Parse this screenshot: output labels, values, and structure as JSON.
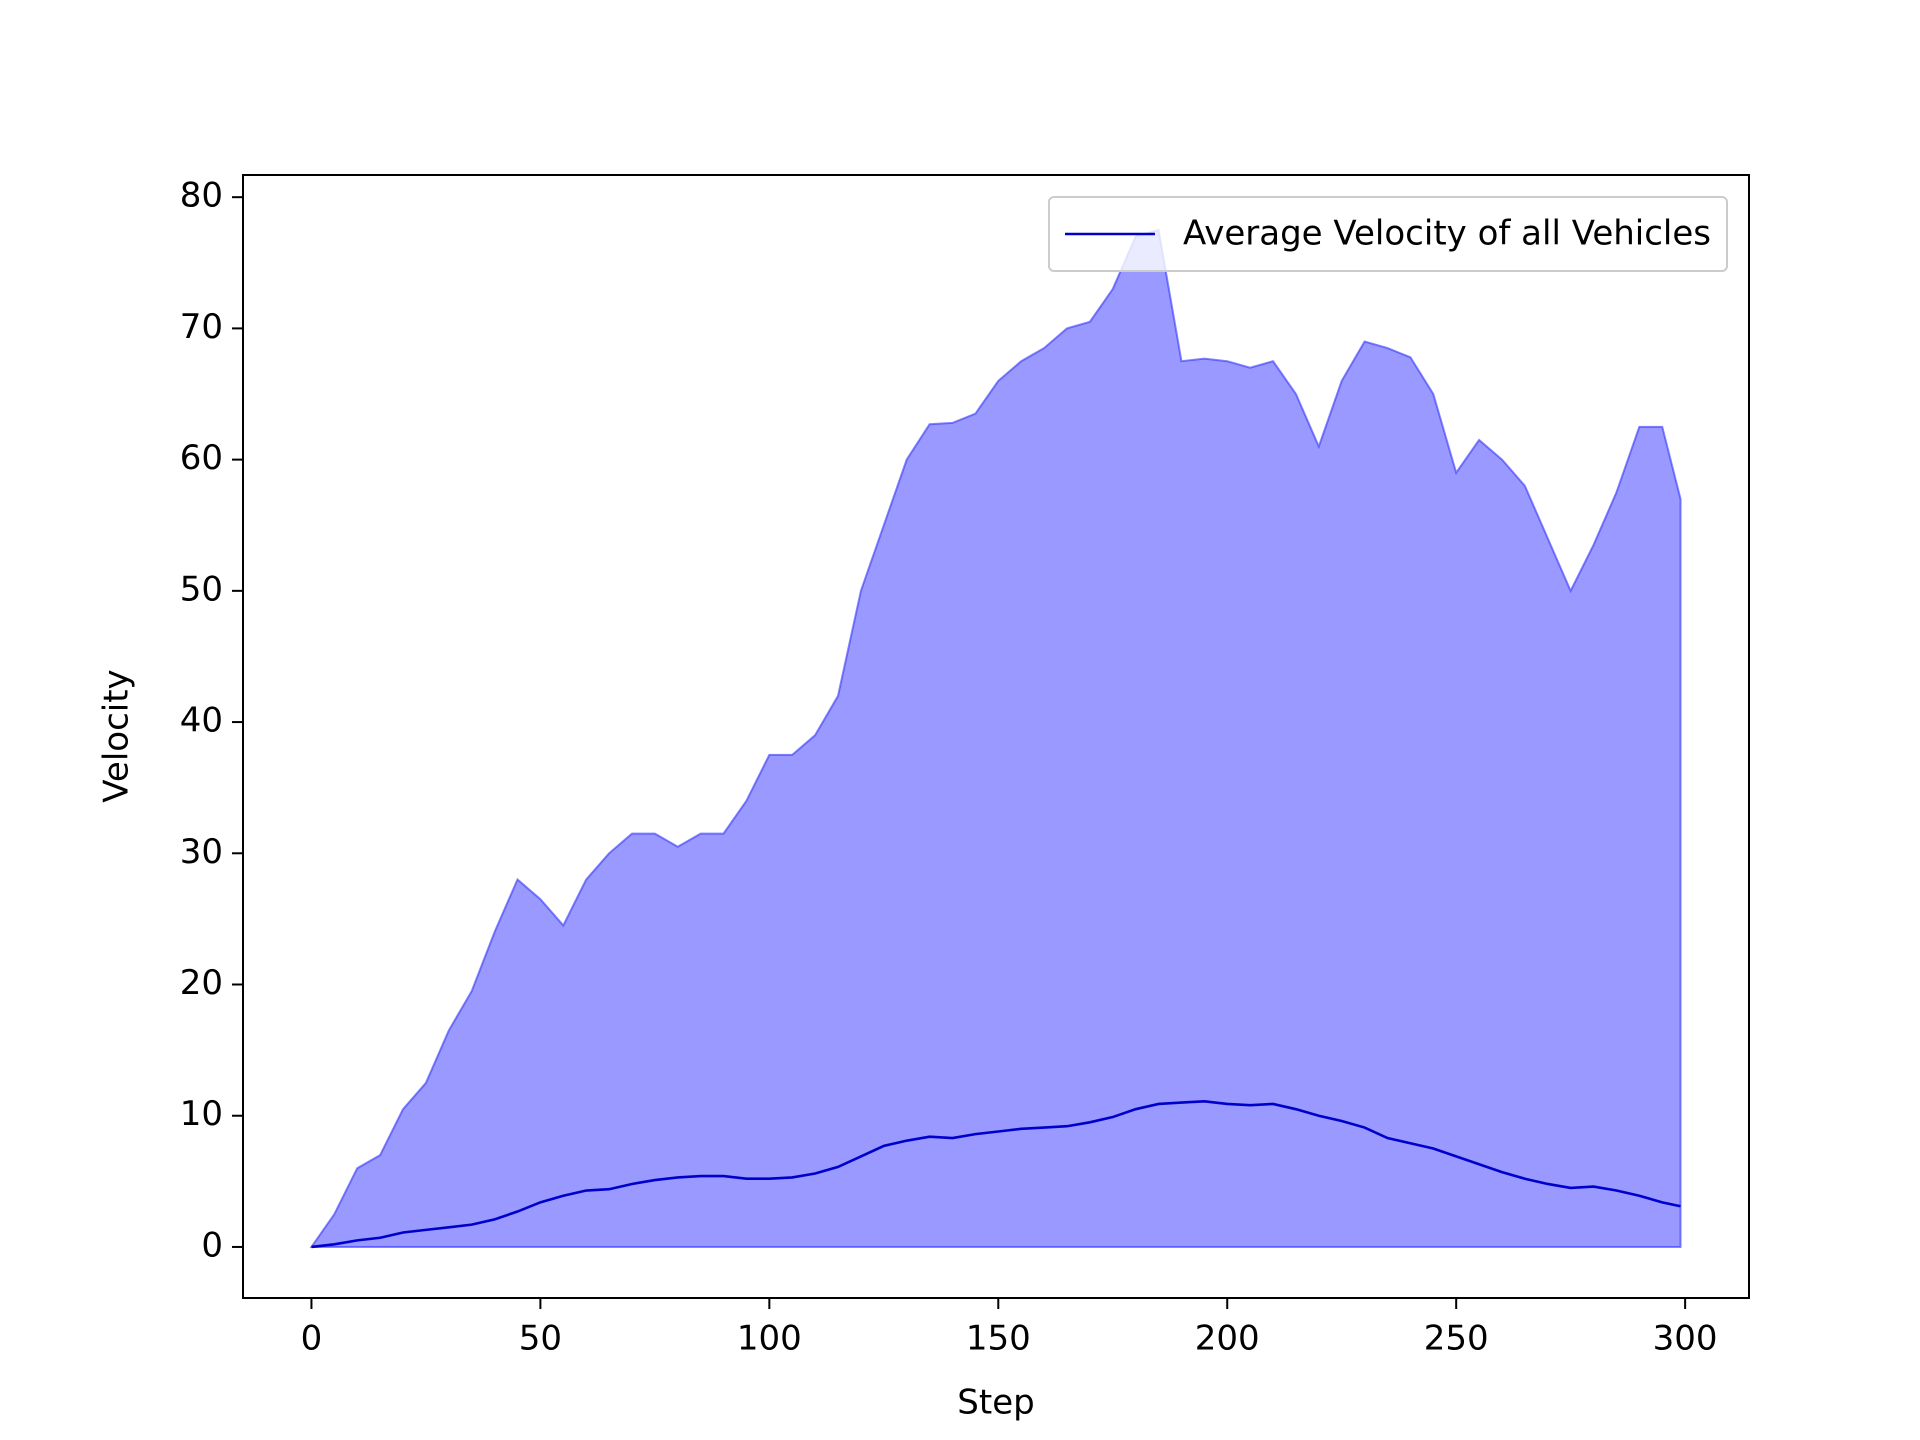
{
  "chart_data": {
    "type": "line",
    "x_label": "Step",
    "y_label": "Velocity",
    "x": [
      0,
      5,
      10,
      15,
      20,
      25,
      30,
      35,
      40,
      45,
      50,
      55,
      60,
      65,
      70,
      75,
      80,
      85,
      90,
      95,
      100,
      105,
      110,
      115,
      120,
      125,
      130,
      135,
      140,
      145,
      150,
      155,
      160,
      165,
      170,
      175,
      180,
      185,
      190,
      195,
      200,
      205,
      210,
      215,
      220,
      225,
      230,
      235,
      240,
      245,
      250,
      255,
      260,
      265,
      270,
      275,
      280,
      285,
      290,
      295,
      299
    ],
    "series": [
      {
        "name": "Average Velocity of all Vehicles",
        "color": "#0000cc",
        "values": [
          0,
          0.2,
          0.5,
          0.7,
          1.1,
          1.3,
          1.5,
          1.7,
          2.1,
          2.7,
          3.4,
          3.9,
          4.3,
          4.4,
          4.8,
          5.1,
          5.3,
          5.4,
          5.4,
          5.2,
          5.2,
          5.3,
          5.6,
          6.1,
          6.9,
          7.7,
          8.1,
          8.4,
          8.3,
          8.6,
          8.8,
          9.0,
          9.1,
          9.2,
          9.5,
          9.9,
          10.5,
          10.9,
          11.0,
          11.1,
          10.9,
          10.8,
          10.9,
          10.5,
          10.0,
          9.6,
          9.1,
          8.3,
          7.9,
          7.5,
          6.9,
          6.3,
          5.7,
          5.2,
          4.8,
          4.5,
          4.6,
          4.3,
          3.9,
          3.4,
          3.1
        ]
      }
    ],
    "fill": {
      "color": "#3333ff",
      "lower": [
        0,
        0,
        0,
        0,
        0,
        0,
        0,
        0,
        0,
        0,
        0,
        0,
        0,
        0,
        0,
        0,
        0,
        0,
        0,
        0,
        0,
        0,
        0,
        0,
        0,
        0,
        0,
        0,
        0,
        0,
        0,
        0,
        0,
        0,
        0,
        0,
        0,
        0,
        0,
        0,
        0,
        0,
        0,
        0,
        0,
        0,
        0,
        0,
        0,
        0,
        0,
        0,
        0,
        0,
        0,
        0,
        0,
        0,
        0,
        0,
        0
      ],
      "upper": [
        0,
        2.5,
        6,
        7,
        10.5,
        12.5,
        16.5,
        19.5,
        24,
        28,
        26.5,
        24.5,
        28,
        30,
        31.5,
        31.5,
        30.5,
        31.5,
        31.5,
        34,
        37.5,
        37.5,
        39,
        42,
        50,
        55,
        60,
        62.7,
        62.8,
        63.5,
        66,
        67.5,
        68.5,
        70,
        70.5,
        73,
        77,
        77.5,
        67.5,
        67.7,
        67.5,
        67,
        67.5,
        65,
        61,
        66,
        69,
        68.5,
        67.8,
        65,
        59,
        61.5,
        60,
        58,
        54,
        50,
        53.5,
        57.5,
        62.5,
        62.5,
        57
      ]
    },
    "xlim": [
      -14.95,
      313.95
    ],
    "xticks": [
      0,
      50,
      100,
      150,
      200,
      250,
      300
    ],
    "ylim": [
      -3.89,
      81.69
    ],
    "yticks": [
      0,
      10,
      20,
      30,
      40,
      50,
      60,
      70,
      80
    ],
    "legend": "upper right"
  }
}
